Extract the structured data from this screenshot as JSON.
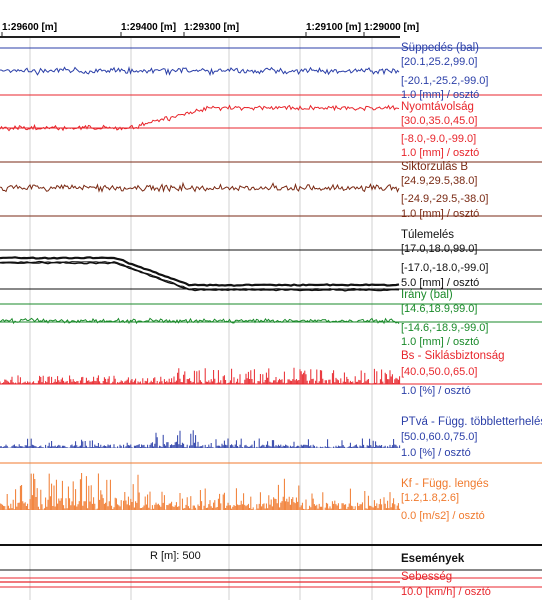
{
  "ruler": {
    "ticks": [
      "1:29600 [m]",
      "1:29400 [m]",
      "1:29300 [m]",
      "1:29100 [m]",
      "1:29000 [m]"
    ]
  },
  "channels": [
    {
      "title": "Süppedés (bal)",
      "upper": "[20.1,25.2,99.0]",
      "lower": "[-20.1,-25.2,-99.0]",
      "scale": "1.0 [mm] / osztó",
      "color": "#2b3fa8"
    },
    {
      "title": "Nyomtávolság",
      "upper": "[30.0,35.0,45.0]",
      "lower": "[-8.0,-9.0,-99.0]",
      "scale": "1.0 [mm] / osztó",
      "color": "#e8262c"
    },
    {
      "title": "Siktorzulás B",
      "upper": "[24.9,29.5,38.0]",
      "lower": "[-24.9,-29.5,-38.0]",
      "scale": "1.0 [mm] / osztó",
      "color": "#7a2a14"
    },
    {
      "title": "Túlemelés",
      "upper": "[17.0,18.0,99.0]",
      "lower": "[-17.0,-18.0,-99.0]",
      "scale": "5.0 [mm] / osztó",
      "color": "#111111"
    },
    {
      "title": "Irány (bal)",
      "upper": "[14.6,18.9,99.0]",
      "lower": "[-14.6,-18.9,-99.0]",
      "scale": "1.0 [mm] / osztó",
      "color": "#1a8a2a"
    },
    {
      "title": "Bs - Siklásbiztonság",
      "upper": "[40.0,50.0,65.0]",
      "scale": "1.0 [%] / osztó",
      "color": "#e8262c"
    },
    {
      "title": "PTvá - Függ. többletterhelés",
      "upper": "[50.0,60.0,75.0]",
      "scale": "1.0 [%] / osztó",
      "color": "#2b3fa8"
    },
    {
      "title": "Kf - Függ. lengés",
      "upper": "[1.2,1.8,2.6]",
      "scale": "0.0 [m/s2] / osztó",
      "color": "#f07a2e"
    }
  ],
  "events": {
    "title": "Események",
    "curve": "R [m]: 500"
  },
  "speed": {
    "title": "Sebesség",
    "scale": "10.0 [km/h] / osztó",
    "color": "#e8262c"
  },
  "colors": {
    "accent_blue": "#2b3fa8",
    "accent_red": "#e8262c"
  }
}
